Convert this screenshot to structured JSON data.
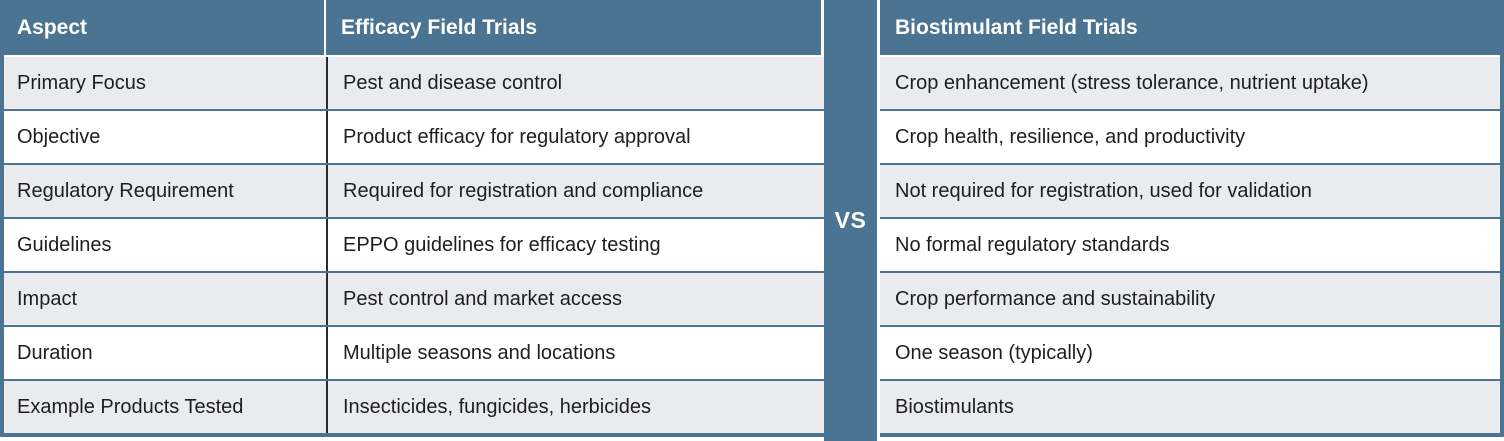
{
  "comparison": {
    "vs_label": "VS",
    "headers": {
      "aspect": "Aspect",
      "efficacy": "Efficacy Field Trials",
      "biostimulant": "Biostimulant Field Trials"
    },
    "rows": [
      {
        "aspect": "Primary Focus",
        "efficacy": "Pest and disease control",
        "biostimulant": "Crop enhancement (stress tolerance, nutrient uptake)"
      },
      {
        "aspect": "Objective",
        "efficacy": "Product efficacy for regulatory approval",
        "biostimulant": "Crop health, resilience, and productivity"
      },
      {
        "aspect": "Regulatory Requirement",
        "efficacy": "Required for registration and compliance",
        "biostimulant": "Not required for registration, used for validation"
      },
      {
        "aspect": "Guidelines",
        "efficacy": "EPPO guidelines for efficacy testing",
        "biostimulant": "No formal regulatory standards"
      },
      {
        "aspect": "Impact",
        "efficacy": "Pest control and market access",
        "biostimulant": "Crop performance and sustainability"
      },
      {
        "aspect": "Duration",
        "efficacy": "Multiple seasons and locations",
        "biostimulant": "One season (typically)"
      },
      {
        "aspect": "Example Products Tested",
        "efficacy": "Insecticides, fungicides, herbicides",
        "biostimulant": "Biostimulants"
      }
    ],
    "colors": {
      "header_bg": "#4a7491",
      "alt_row_bg": "#e9ebee",
      "row_bg": "#ffffff",
      "header_text": "#ffffff",
      "body_text": "#1e1e1e",
      "column_divider": "#2b2b2b"
    }
  }
}
